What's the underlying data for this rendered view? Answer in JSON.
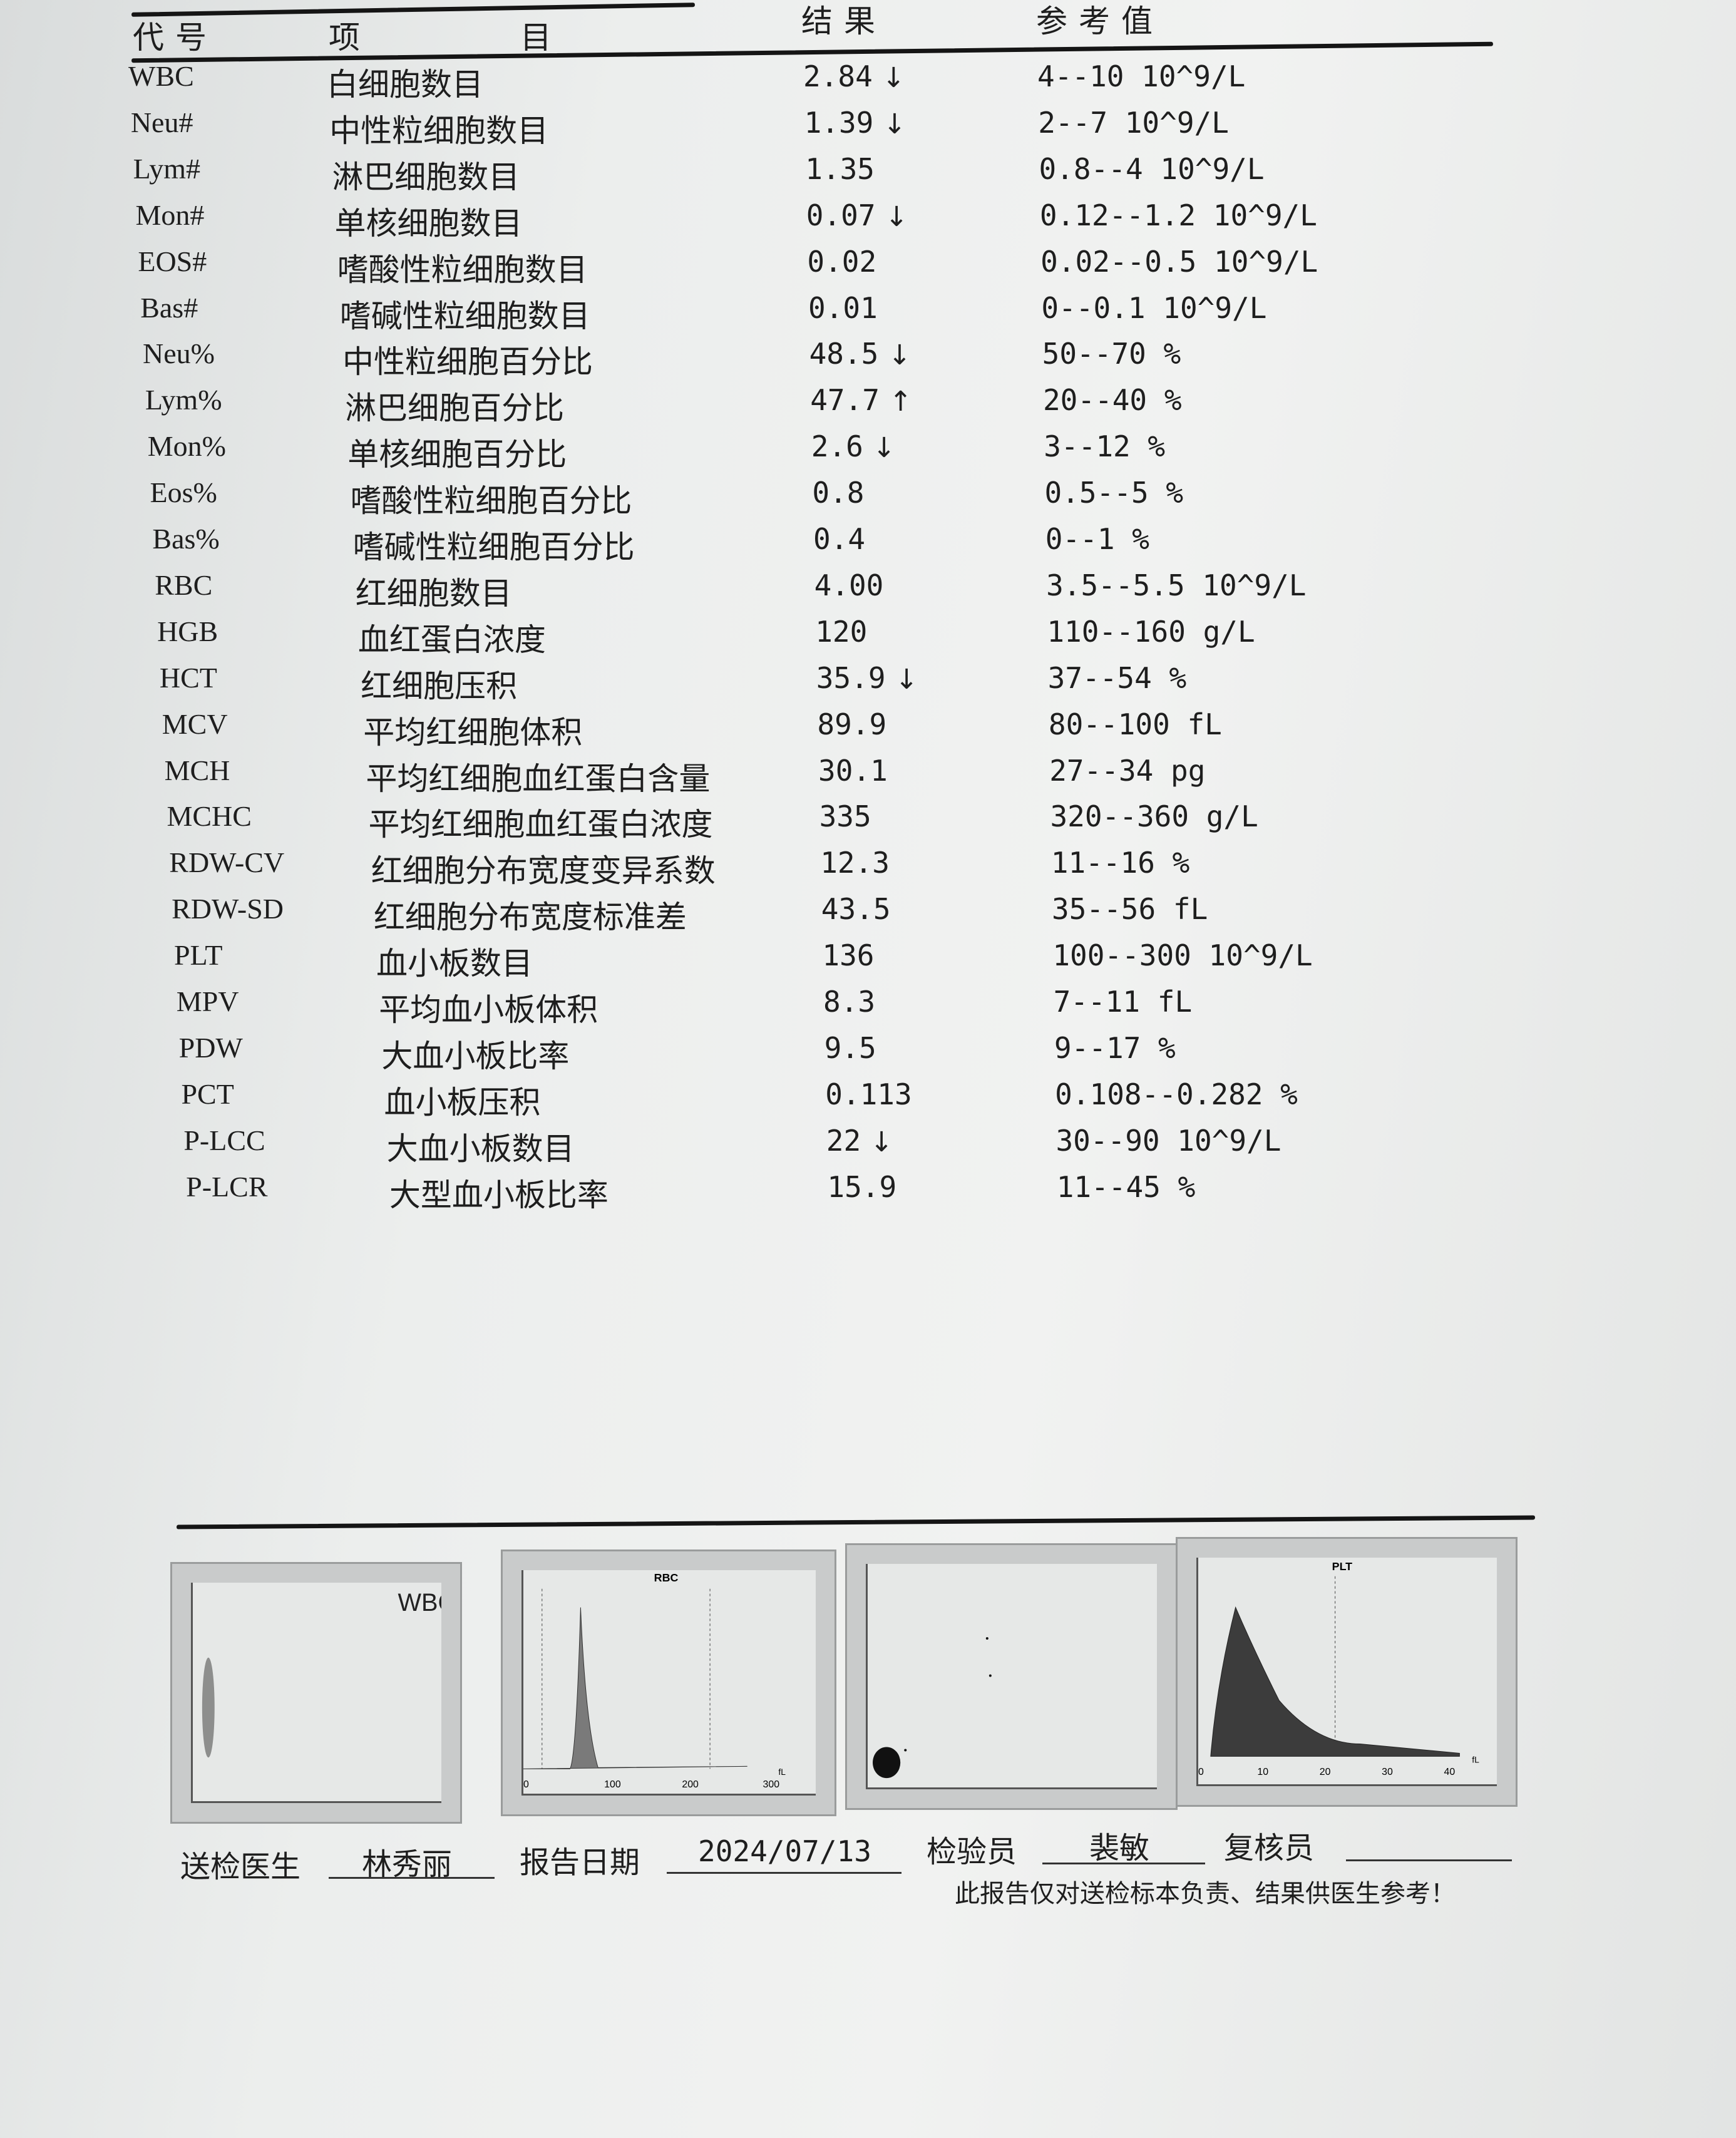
{
  "header": {
    "code": "代号",
    "item": "项 目",
    "result": "结果",
    "reference": "参考值"
  },
  "rows": [
    {
      "code": "WBC",
      "name": "白细胞数目",
      "result": "2.84",
      "flag": "↓",
      "ref": "4--10 10^9/L"
    },
    {
      "code": "Neu#",
      "name": "中性粒细胞数目",
      "result": "1.39",
      "flag": "↓",
      "ref": "2--7 10^9/L"
    },
    {
      "code": "Lym#",
      "name": "淋巴细胞数目",
      "result": "1.35",
      "flag": "",
      "ref": "0.8--4 10^9/L"
    },
    {
      "code": "Mon#",
      "name": "单核细胞数目",
      "result": "0.07",
      "flag": "↓",
      "ref": "0.12--1.2 10^9/L"
    },
    {
      "code": "EOS#",
      "name": "嗜酸性粒细胞数目",
      "result": "0.02",
      "flag": "",
      "ref": "0.02--0.5 10^9/L"
    },
    {
      "code": "Bas#",
      "name": "嗜碱性粒细胞数目",
      "result": "0.01",
      "flag": "",
      "ref": "0--0.1 10^9/L"
    },
    {
      "code": "Neu%",
      "name": "中性粒细胞百分比",
      "result": "48.5",
      "flag": "↓",
      "ref": "50--70 %"
    },
    {
      "code": "Lym%",
      "name": "淋巴细胞百分比",
      "result": "47.7",
      "flag": "↑",
      "ref": "20--40 %"
    },
    {
      "code": "Mon%",
      "name": "单核细胞百分比",
      "result": "2.6",
      "flag": "↓",
      "ref": "3--12 %"
    },
    {
      "code": "Eos%",
      "name": "嗜酸性粒细胞百分比",
      "result": "0.8",
      "flag": "",
      "ref": "0.5--5 %"
    },
    {
      "code": "Bas%",
      "name": "嗜碱性粒细胞百分比",
      "result": "0.4",
      "flag": "",
      "ref": "0--1 %"
    },
    {
      "code": "RBC",
      "name": "红细胞数目",
      "result": "4.00",
      "flag": "",
      "ref": "3.5--5.5 10^9/L"
    },
    {
      "code": "HGB",
      "name": "血红蛋白浓度",
      "result": "120",
      "flag": "",
      "ref": "110--160 g/L"
    },
    {
      "code": "HCT",
      "name": "红细胞压积",
      "result": "35.9",
      "flag": "↓",
      "ref": "37--54 %"
    },
    {
      "code": "MCV",
      "name": "平均红细胞体积",
      "result": "89.9",
      "flag": "",
      "ref": "80--100 fL"
    },
    {
      "code": "MCH",
      "name": "平均红细胞血红蛋白含量",
      "result": "30.1",
      "flag": "",
      "ref": "27--34 pg"
    },
    {
      "code": "MCHC",
      "name": "平均红细胞血红蛋白浓度",
      "result": "335",
      "flag": "",
      "ref": "320--360 g/L"
    },
    {
      "code": "RDW-CV",
      "name": "红细胞分布宽度变异系数",
      "result": "12.3",
      "flag": "",
      "ref": "11--16 %"
    },
    {
      "code": "RDW-SD",
      "name": "红细胞分布宽度标准差",
      "result": "43.5",
      "flag": "",
      "ref": "35--56 fL"
    },
    {
      "code": "PLT",
      "name": "血小板数目",
      "result": "136",
      "flag": "",
      "ref": "100--300 10^9/L"
    },
    {
      "code": "MPV",
      "name": "平均血小板体积",
      "result": "8.3",
      "flag": "",
      "ref": "7--11 fL"
    },
    {
      "code": "PDW",
      "name": "大血小板比率",
      "result": "9.5",
      "flag": "",
      "ref": "9--17 %"
    },
    {
      "code": "PCT",
      "name": "血小板压积",
      "result": "0.113",
      "flag": "",
      "ref": "0.108--0.282 %"
    },
    {
      "code": "P-LCC",
      "name": "大血小板数目",
      "result": "22",
      "flag": "↓",
      "ref": "30--90 10^9/L"
    },
    {
      "code": "P-LCR",
      "name": "大型血小板比率",
      "result": "15.9",
      "flag": "",
      "ref": "11--45 %"
    }
  ],
  "histograms": {
    "wbc": {
      "title": "WBC"
    },
    "rbc": {
      "title": "RBC",
      "ticks": [
        "0",
        "100",
        "200",
        "300"
      ],
      "unit": "fL"
    },
    "plt": {
      "title": "PLT",
      "ticks": [
        "0",
        "10",
        "20",
        "30",
        "40"
      ],
      "unit": "fL"
    }
  },
  "footer": {
    "doctor_label": "送检医生",
    "doctor": "林秀丽",
    "date_label": "报告日期",
    "date": "2024/07/13",
    "inspector_label": "检验员",
    "inspector": "裴敏",
    "reviewer_label": "复核员",
    "reviewer": "",
    "note": "此报告仅对送检标本负责、结果供医生参考！"
  }
}
